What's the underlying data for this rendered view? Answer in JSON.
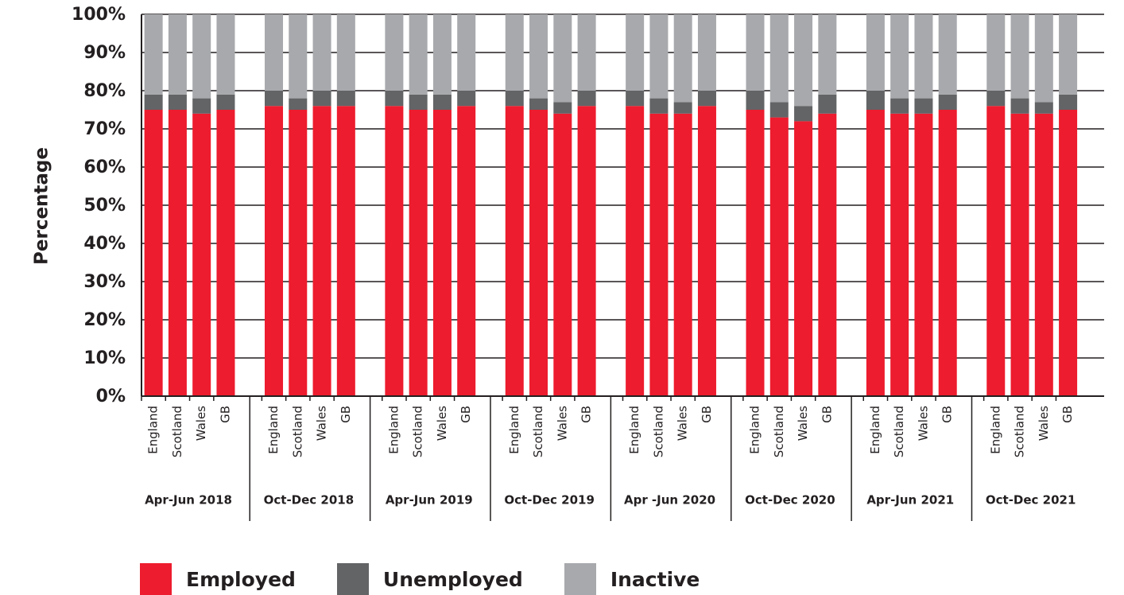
{
  "chart_data": {
    "type": "bar",
    "stacked": true,
    "ylabel": "Percentage",
    "ylim": [
      0,
      100
    ],
    "yticks": [
      "0%",
      "10%",
      "20%",
      "30%",
      "40%",
      "50%",
      "60%",
      "70%",
      "80%",
      "90%",
      "100%"
    ],
    "grid": true,
    "legend_position": "bottom-left",
    "categories": [
      "England",
      "Scotland",
      "Wales",
      "GB"
    ],
    "periods": [
      "Apr-Jun 2018",
      "Oct-Dec 2018",
      "Apr-Jun 2019",
      "Oct-Dec 2019",
      "Apr -Jun 2020",
      "Oct-Dec 2020",
      "Apr-Jun 2021",
      "Oct-Dec 2021"
    ],
    "series": [
      {
        "name": "Employed",
        "color": "#ed1c2e",
        "values": [
          [
            75,
            75,
            74,
            75
          ],
          [
            76,
            75,
            76,
            76
          ],
          [
            76,
            75,
            75,
            76
          ],
          [
            76,
            75,
            74,
            76
          ],
          [
            76,
            74,
            74,
            76
          ],
          [
            75,
            73,
            72,
            74
          ],
          [
            75,
            74,
            74,
            75
          ],
          [
            76,
            74,
            74,
            75
          ]
        ]
      },
      {
        "name": "Unemployed",
        "color": "#636466",
        "values": [
          [
            4,
            4,
            4,
            4
          ],
          [
            4,
            3,
            4,
            4
          ],
          [
            4,
            4,
            4,
            4
          ],
          [
            4,
            3,
            3,
            4
          ],
          [
            4,
            4,
            3,
            4
          ],
          [
            5,
            4,
            4,
            5
          ],
          [
            5,
            4,
            4,
            4
          ],
          [
            4,
            4,
            3,
            4
          ]
        ]
      },
      {
        "name": "Inactive",
        "color": "#a7a9ac",
        "values": [
          [
            21,
            21,
            22,
            21
          ],
          [
            20,
            22,
            20,
            20
          ],
          [
            20,
            21,
            21,
            20
          ],
          [
            20,
            22,
            23,
            20
          ],
          [
            20,
            22,
            23,
            20
          ],
          [
            20,
            23,
            24,
            21
          ],
          [
            20,
            22,
            22,
            21
          ],
          [
            20,
            22,
            23,
            21
          ]
        ]
      }
    ]
  }
}
